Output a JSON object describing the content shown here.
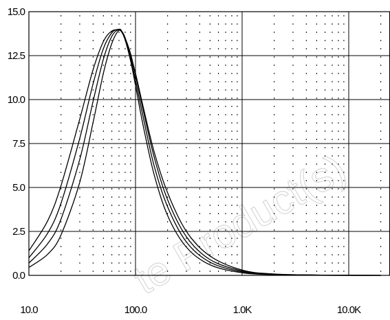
{
  "chart_data": {
    "type": "line",
    "x_scale": "log",
    "xlim": [
      10,
      20000
    ],
    "ylim": [
      0,
      15
    ],
    "grid": true,
    "x_tick_labels": [
      {
        "value": 10,
        "label": "10.0"
      },
      {
        "value": 100,
        "label": "100.0"
      },
      {
        "value": 1000,
        "label": "1.0K"
      },
      {
        "value": 10000,
        "label": "10.0K"
      }
    ],
    "y_tick_labels": [
      {
        "value": 0,
        "label": "0.0"
      },
      {
        "value": 2.5,
        "label": "2.5"
      },
      {
        "value": 5,
        "label": "5.0"
      },
      {
        "value": 7.5,
        "label": "7.5"
      },
      {
        "value": 10,
        "label": "10.0"
      },
      {
        "value": 12.5,
        "label": "12.5"
      },
      {
        "value": 15,
        "label": "15.0"
      }
    ],
    "x": [
      10,
      15,
      20,
      30,
      40,
      50,
      60,
      70,
      75,
      80,
      90,
      100,
      120,
      150,
      200,
      300,
      500,
      1000,
      2000,
      5000,
      10000,
      20000
    ],
    "series": [
      {
        "values": [
          1.4,
          3.1,
          5.1,
          8.9,
          11.7,
          13.3,
          13.9,
          13.95,
          13.8,
          13.4,
          12.5,
          11.5,
          9.4,
          7.0,
          4.7,
          2.5,
          1.1,
          0.3,
          0.08,
          0.02,
          0.01,
          0.0
        ]
      },
      {
        "values": [
          1.0,
          2.4,
          4.1,
          7.8,
          10.9,
          12.9,
          13.8,
          14.0,
          13.85,
          13.5,
          12.6,
          11.4,
          9.2,
          6.7,
          4.3,
          2.2,
          0.9,
          0.25,
          0.06,
          0.02,
          0.0,
          0.0
        ]
      },
      {
        "values": [
          0.7,
          1.8,
          3.2,
          6.6,
          9.9,
          12.3,
          13.6,
          14.0,
          13.85,
          13.5,
          12.4,
          11.1,
          8.8,
          6.2,
          3.9,
          1.9,
          0.75,
          0.2,
          0.05,
          0.01,
          0.0,
          0.0
        ]
      },
      {
        "values": [
          0.45,
          1.2,
          2.3,
          5.3,
          8.7,
          11.5,
          13.2,
          13.95,
          13.8,
          13.4,
          12.2,
          10.8,
          8.3,
          5.7,
          3.4,
          1.6,
          0.6,
          0.15,
          0.04,
          0.01,
          0.0,
          0.0
        ]
      }
    ]
  },
  "watermark": "te Product(s)",
  "colors": {
    "grid": "#000000",
    "curve": "#000000",
    "watermark": "#d8d8d8"
  }
}
